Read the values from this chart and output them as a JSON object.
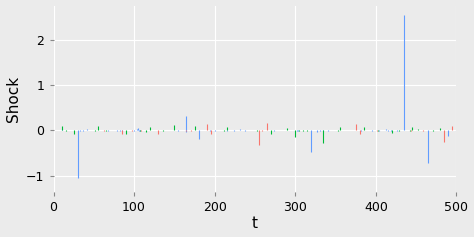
{
  "xlabel": "t",
  "ylabel": "Shock",
  "xlim": [
    0,
    500
  ],
  "ylim": [
    -1.35,
    2.75
  ],
  "yticks": [
    -1,
    0,
    1,
    2
  ],
  "xticks": [
    0,
    100,
    200,
    300,
    400,
    500
  ],
  "bg_color": "#EBEBEB",
  "grid_color": "white",
  "blue_color": "#619CFF",
  "green_color": "#00BA38",
  "red_color": "#F8766D",
  "blue_spikes": {
    "30": -1.05,
    "165": 0.32,
    "180": -0.18,
    "320": -0.48,
    "435": 2.55,
    "465": -0.72,
    "490": -0.13
  },
  "green_spikes": {
    "10": 0.1,
    "25": -0.07,
    "55": 0.09,
    "90": -0.07,
    "120": 0.08,
    "150": 0.11,
    "175": 0.09,
    "215": 0.08,
    "270": -0.07,
    "290": 0.06,
    "300": -0.14,
    "335": -0.28,
    "355": 0.07,
    "385": 0.07,
    "420": -0.05,
    "445": 0.07,
    "480": 0.06
  },
  "red_spikes": {
    "85": -0.07,
    "130": -0.08,
    "190": 0.13,
    "195": -0.07,
    "255": -0.32,
    "265": 0.16,
    "375": 0.13,
    "380": -0.07,
    "485": -0.25,
    "495": 0.1
  },
  "noise_std_blue": 0.015,
  "noise_std_green": 0.012,
  "noise_std_red": 0.01,
  "noise_threshold": 0.02,
  "lw": 0.8
}
